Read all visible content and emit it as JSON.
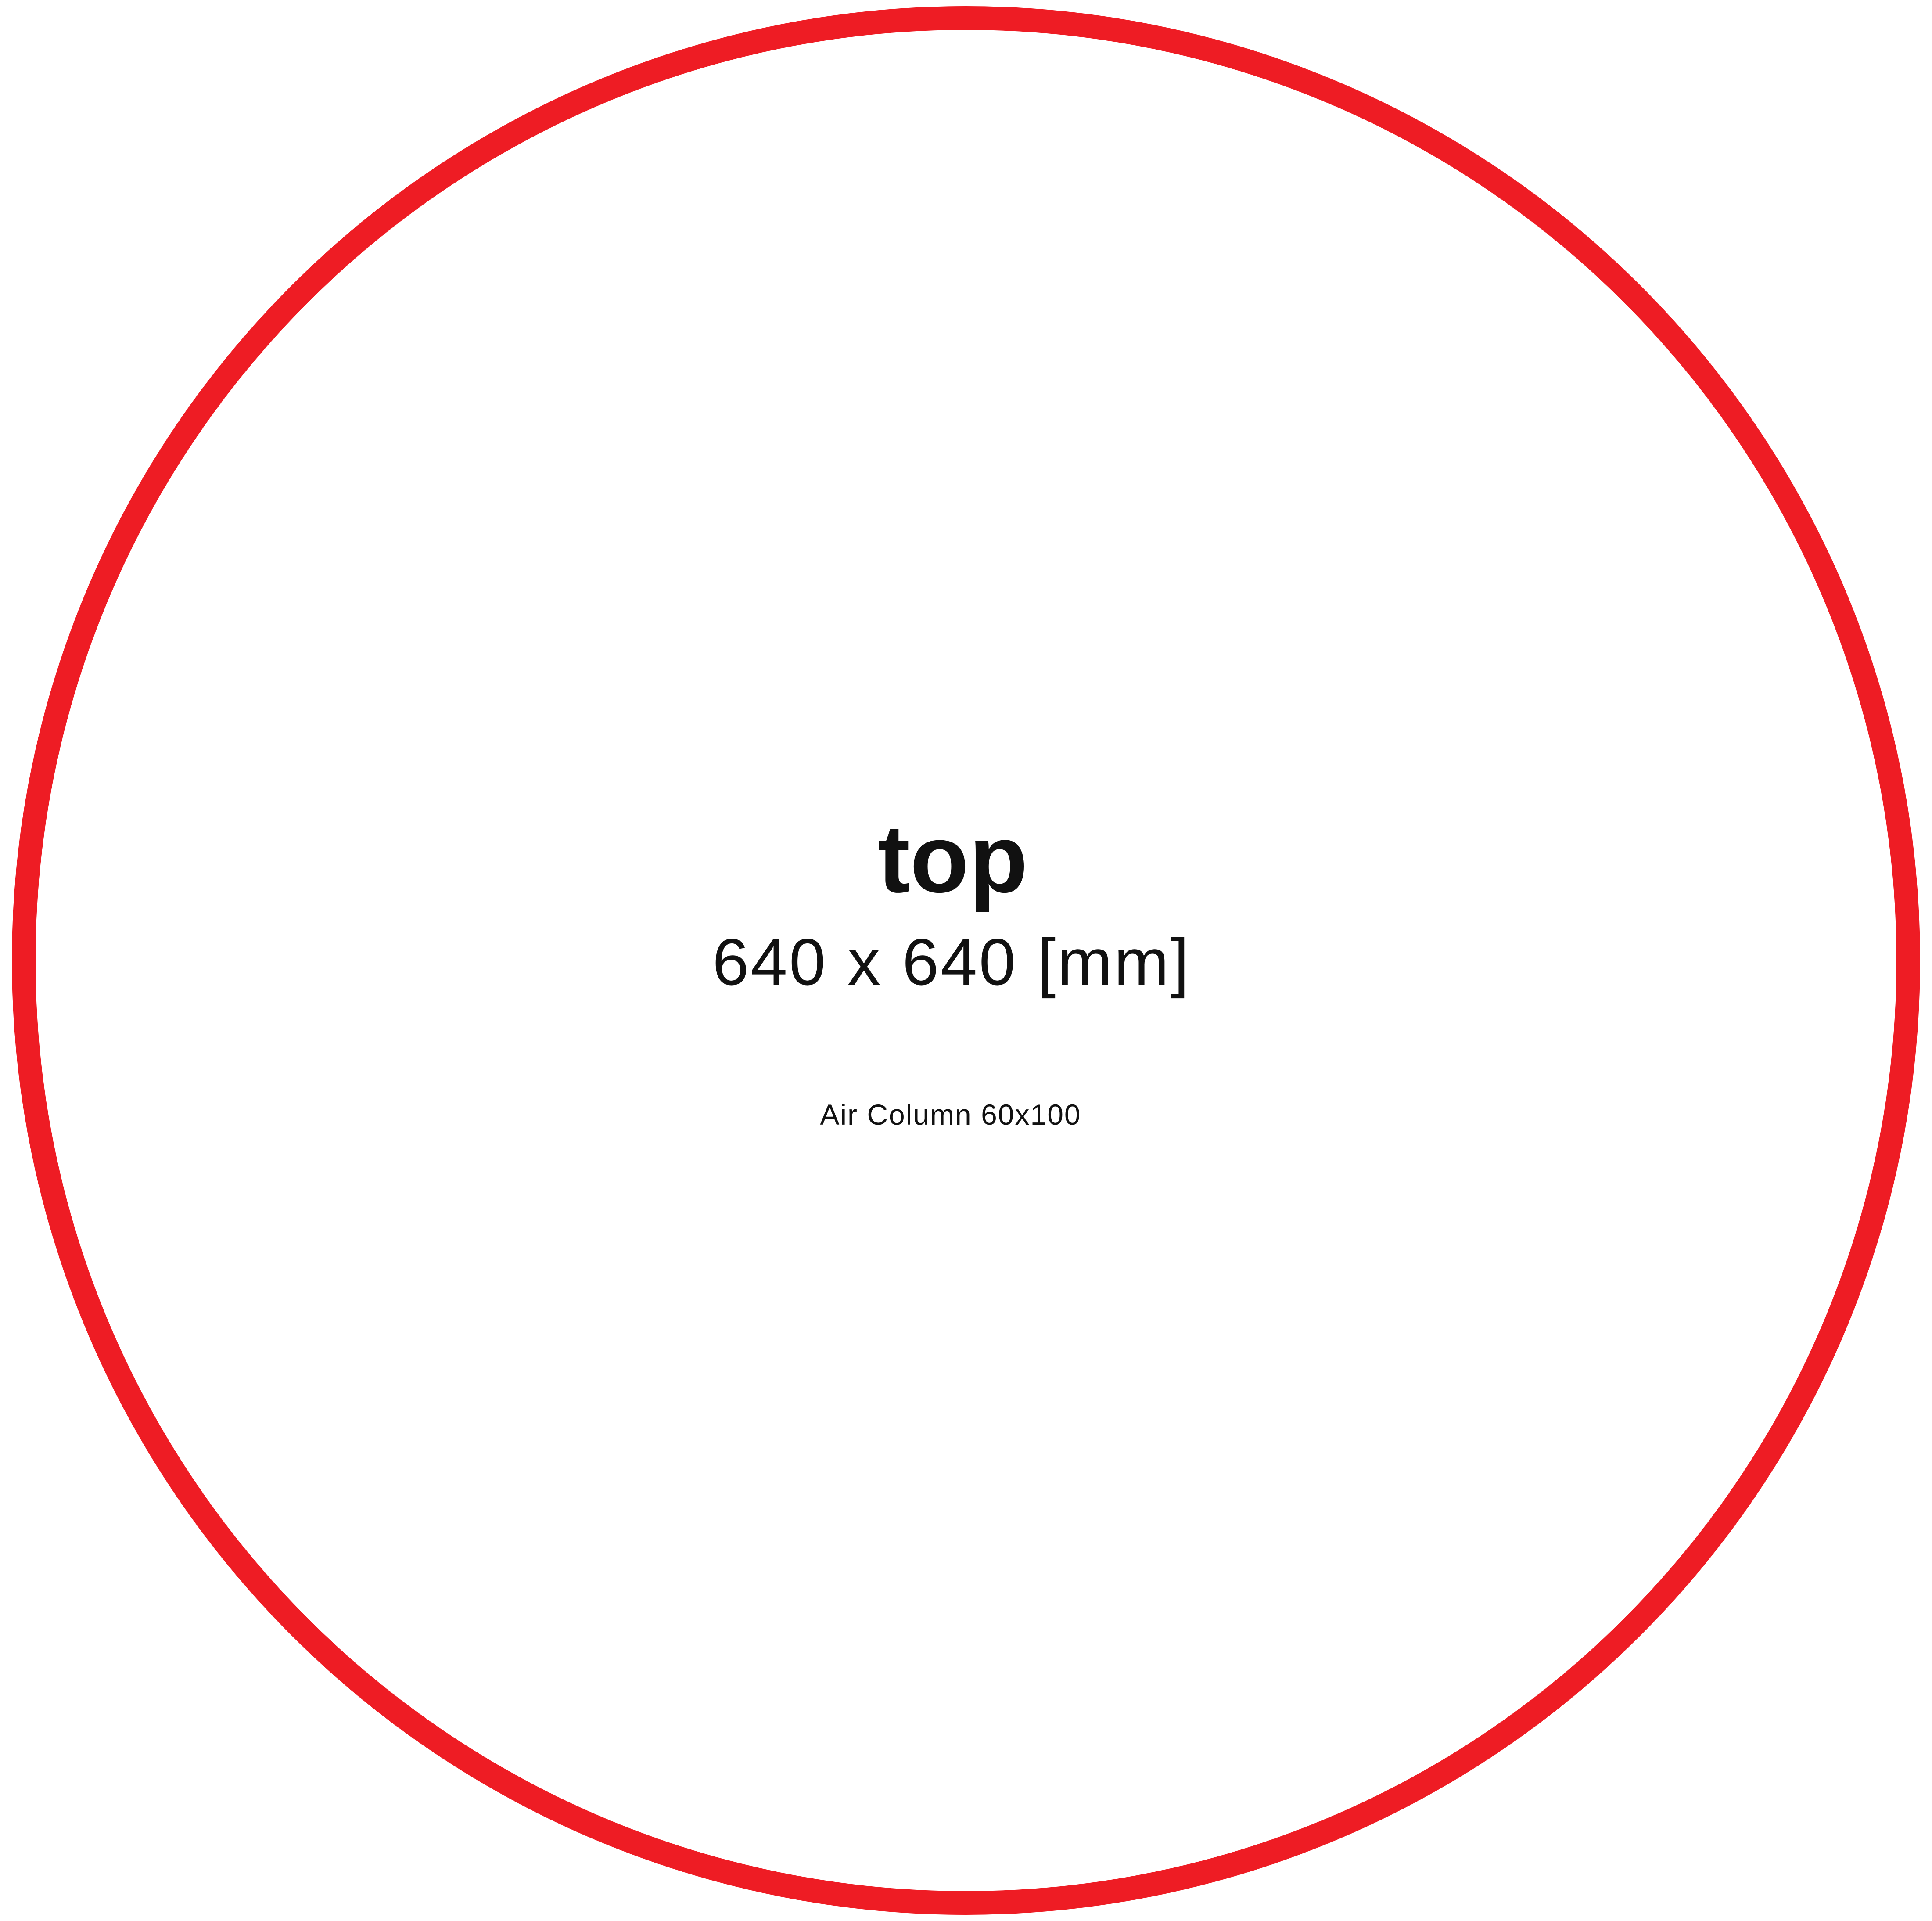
{
  "template": {
    "title": "top",
    "dimensions": "640 x 640 [mm]",
    "caption": "Air Column 60x100",
    "outline_shape": "circle",
    "outline_color": "#ee1c24"
  }
}
